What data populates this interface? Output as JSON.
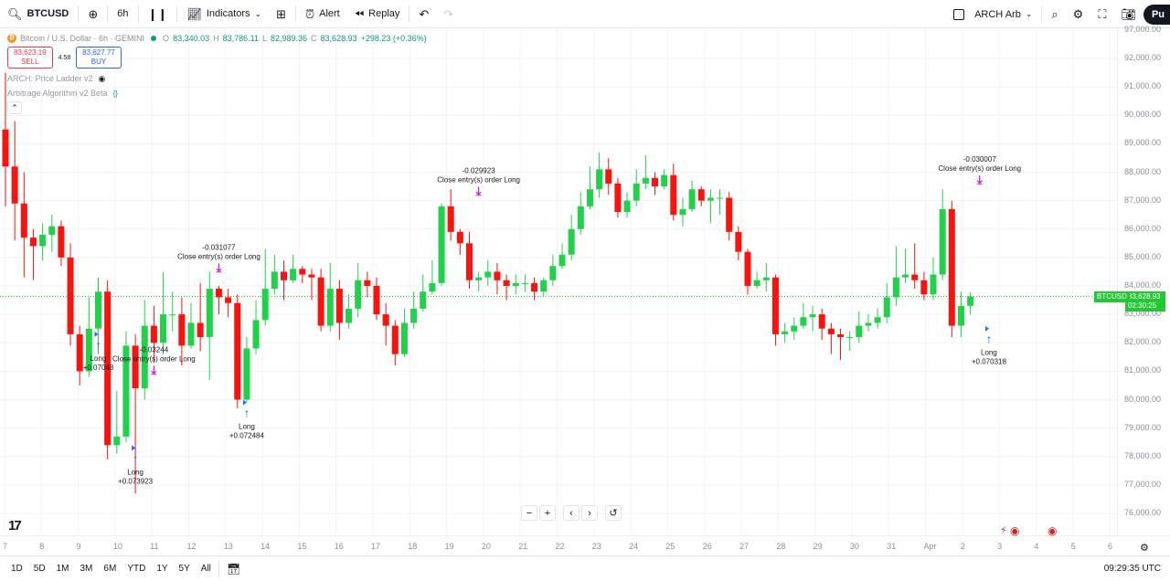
{
  "toolbar": {
    "symbol": "BTCUSD",
    "interval": "6h",
    "indicators_label": "Indicators",
    "alert_label": "Alert",
    "replay_label": "Replay",
    "layout_name": "ARCH Arb",
    "publish_label": "Pu"
  },
  "legend": {
    "title": "Bitcoin / U.S. Dollar · 6h · GEMINI",
    "ohlc": [
      {
        "k": "O",
        "v": "83,340.03"
      },
      {
        "k": "H",
        "v": "83,786.11"
      },
      {
        "k": "L",
        "v": "82,989.36"
      },
      {
        "k": "C",
        "v": "83,628.93"
      }
    ],
    "change": "+298.23 (+0.36%)",
    "sell_price": "83,623.19",
    "sell_label": "SELL",
    "spread": "4.58",
    "buy_price": "83,627.77",
    "buy_label": "BUY",
    "indicator1": "ARCH: Price Ladder v2",
    "indicator2": "Arbitrage Algorithm v2 Beta"
  },
  "price_axis": {
    "ticks": [
      "97,000.00",
      "92,000.00",
      "91,000.00",
      "90,000.00",
      "89,000.00",
      "88,000.00",
      "87,000.00",
      "86,000.00",
      "85,000.00",
      "84,000.00",
      "83,000.00",
      "82,000.00",
      "81,000.00",
      "80,000.00",
      "79,000.00",
      "78,000.00",
      "77,000.00",
      "76,000.00"
    ],
    "current_symbol": "BTCUSD",
    "current_price": "83,628.93",
    "countdown": "02:30:25"
  },
  "time_axis": {
    "labels": [
      "7",
      "8",
      "9",
      "10",
      "11",
      "12",
      "13",
      "14",
      "15",
      "16",
      "17",
      "18",
      "19",
      "20",
      "21",
      "22",
      "23",
      "24",
      "25",
      "26",
      "27",
      "28",
      "29",
      "30",
      "31",
      "Apr",
      "2",
      "3",
      "4",
      "5",
      "6"
    ]
  },
  "bottom": {
    "ranges": [
      "1D",
      "5D",
      "1M",
      "3M",
      "6M",
      "YTD",
      "1Y",
      "5Y",
      "All"
    ],
    "clock": "09:29:35 UTC"
  },
  "annotations": {
    "close1_value": "-0.03244",
    "close_label": "Close entry(s) order Long",
    "close2_value": "-0.031077",
    "close3_value": "-0.029923",
    "close4_value": "-0.030007",
    "long_label": "Long",
    "long1_value": "+0.07048",
    "long2_value": "+0.073923",
    "long3_value": "+0.072484",
    "long4_value": "+0.070318"
  },
  "colors": {
    "up": "#22d14a",
    "down": "#f7140f",
    "sell": "#f23645",
    "buy": "#2962ff",
    "badge": "#22c933",
    "marker_purple": "#c51cd6"
  },
  "chart_data": {
    "type": "candlestick",
    "symbol": "BTCUSD",
    "timeframe": "6h",
    "y_range": [
      75500,
      97000
    ],
    "candles": [
      [
        89500,
        88200,
        91500,
        86800
      ],
      [
        88200,
        86900,
        89800,
        85600
      ],
      [
        86900,
        85700,
        88000,
        84300
      ],
      [
        85700,
        85400,
        86000,
        84200
      ],
      [
        85400,
        85800,
        86200,
        84900
      ],
      [
        85800,
        86100,
        86500,
        85200
      ],
      [
        86100,
        85000,
        86300,
        84700
      ],
      [
        85000,
        82300,
        85500,
        81900
      ],
      [
        82300,
        81000,
        82600,
        80500
      ],
      [
        81000,
        82500,
        83600,
        80800
      ],
      [
        82500,
        83800,
        84300,
        81600
      ],
      [
        83800,
        78400,
        84200,
        77900
      ],
      [
        78400,
        78700,
        80300,
        78100
      ],
      [
        78700,
        81900,
        82400,
        78500
      ],
      [
        81900,
        80400,
        82300,
        76700
      ],
      [
        80400,
        82600,
        83500,
        80000
      ],
      [
        82600,
        82000,
        83300,
        81300
      ],
      [
        82000,
        83000,
        84500,
        81600
      ],
      [
        83000,
        83000,
        83800,
        82400
      ],
      [
        83000,
        81900,
        83600,
        81200
      ],
      [
        81900,
        82700,
        83400,
        81800
      ],
      [
        82700,
        82200,
        84100,
        81700
      ],
      [
        82200,
        83900,
        84500,
        80700
      ],
      [
        83900,
        83600,
        84000,
        83000
      ],
      [
        83600,
        83400,
        83900,
        82900
      ],
      [
        83400,
        80000,
        83700,
        79700
      ],
      [
        80000,
        81800,
        82200,
        79900
      ],
      [
        81800,
        82800,
        83500,
        81600
      ],
      [
        82800,
        83900,
        85300,
        82600
      ],
      [
        83900,
        84500,
        85100,
        83700
      ],
      [
        84500,
        84200,
        84900,
        83500
      ],
      [
        84200,
        84600,
        85100,
        84100
      ],
      [
        84600,
        84400,
        84700,
        84100
      ],
      [
        84400,
        84300,
        84600,
        83500
      ],
      [
        84300,
        82600,
        84600,
        82400
      ],
      [
        82600,
        83900,
        84800,
        82400
      ],
      [
        83900,
        82700,
        84200,
        82100
      ],
      [
        82700,
        83200,
        83700,
        82500
      ],
      [
        83200,
        84200,
        84800,
        82900
      ],
      [
        84200,
        84000,
        84500,
        83600
      ],
      [
        84000,
        83000,
        84300,
        82800
      ],
      [
        83000,
        82600,
        83400,
        81900
      ],
      [
        82600,
        81600,
        82800,
        81200
      ],
      [
        81600,
        82700,
        83200,
        81500
      ],
      [
        82700,
        83200,
        83800,
        82500
      ],
      [
        83200,
        83800,
        84400,
        83100
      ],
      [
        83800,
        84100,
        84900,
        83700
      ],
      [
        84100,
        86800,
        86900,
        84000
      ],
      [
        86800,
        85900,
        87400,
        85600
      ],
      [
        85900,
        85500,
        86000,
        85100
      ],
      [
        85500,
        84200,
        85900,
        83900
      ],
      [
        84200,
        84300,
        84500,
        83800
      ],
      [
        84300,
        84500,
        84900,
        84000
      ],
      [
        84500,
        84200,
        84800,
        83700
      ],
      [
        84200,
        84000,
        84400,
        83500
      ],
      [
        84000,
        84100,
        84400,
        83700
      ],
      [
        84100,
        84100,
        84400,
        83800
      ],
      [
        84100,
        83800,
        84300,
        83500
      ],
      [
        83800,
        84200,
        84300,
        83600
      ],
      [
        84200,
        84700,
        85100,
        84000
      ],
      [
        84700,
        85100,
        85500,
        84600
      ],
      [
        85100,
        86000,
        86500,
        84900
      ],
      [
        86000,
        86800,
        87300,
        85800
      ],
      [
        86800,
        87400,
        88200,
        86700
      ],
      [
        87400,
        88100,
        88700,
        87100
      ],
      [
        88100,
        87600,
        88500,
        87200
      ],
      [
        87600,
        86600,
        87800,
        86400
      ],
      [
        86600,
        87000,
        87300,
        86400
      ],
      [
        87000,
        87600,
        88100,
        86800
      ],
      [
        87600,
        87800,
        88600,
        87400
      ],
      [
        87800,
        87500,
        88000,
        87200
      ],
      [
        87500,
        87900,
        88100,
        87400
      ],
      [
        87900,
        86500,
        88300,
        86300
      ],
      [
        86500,
        86700,
        87100,
        86100
      ],
      [
        86700,
        87400,
        87700,
        86600
      ],
      [
        87400,
        87000,
        87500,
        86800
      ],
      [
        87000,
        87100,
        87400,
        86200
      ],
      [
        87100,
        87100,
        87400,
        86500
      ],
      [
        87100,
        85900,
        87300,
        85600
      ],
      [
        85900,
        85200,
        86100,
        84900
      ],
      [
        85200,
        84000,
        85300,
        83700
      ],
      [
        84000,
        84200,
        84500,
        83900
      ],
      [
        84200,
        84300,
        84800,
        83800
      ],
      [
        84300,
        82300,
        84400,
        81900
      ],
      [
        82300,
        82400,
        82700,
        82000
      ],
      [
        82400,
        82600,
        82900,
        82100
      ],
      [
        82600,
        82900,
        83400,
        82500
      ],
      [
        82900,
        83000,
        83300,
        82400
      ],
      [
        83000,
        82500,
        83200,
        82100
      ],
      [
        82500,
        82300,
        82700,
        81600
      ],
      [
        82300,
        82200,
        82500,
        81400
      ],
      [
        82200,
        82200,
        82400,
        81700
      ],
      [
        82200,
        82600,
        83100,
        82000
      ],
      [
        82600,
        82700,
        83000,
        82400
      ],
      [
        82700,
        82900,
        83200,
        82500
      ],
      [
        82900,
        83600,
        84100,
        82700
      ],
      [
        83600,
        84300,
        85400,
        83300
      ],
      [
        84300,
        84400,
        85300,
        84100
      ],
      [
        84400,
        84200,
        85500,
        83900
      ],
      [
        84200,
        83700,
        84500,
        83500
      ],
      [
        83700,
        84400,
        85000,
        83500
      ],
      [
        84400,
        86700,
        87400,
        84200
      ],
      [
        86700,
        82600,
        87000,
        82200
      ],
      [
        82600,
        83300,
        83800,
        82200
      ],
      [
        83300,
        83629,
        83786,
        82989
      ]
    ]
  }
}
